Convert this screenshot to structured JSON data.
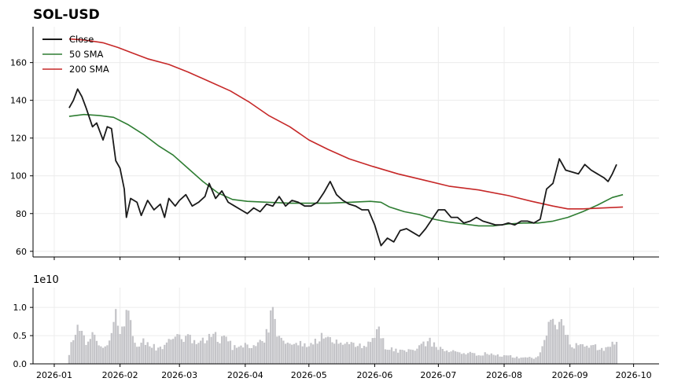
{
  "chart_data": {
    "type": "line",
    "title": "SOL-USD",
    "x_ticks": [
      "2026-01",
      "2026-02",
      "2026-03",
      "2026-04",
      "2026-05",
      "2026-06",
      "2026-07",
      "2026-08",
      "2026-09",
      "2026-10"
    ],
    "price_panel": {
      "ylim": [
        57,
        179
      ],
      "y_ticks": [
        60,
        80,
        100,
        120,
        140,
        160
      ],
      "grid": true,
      "legend_placement": "top-left",
      "series": [
        {
          "name": "Close",
          "color": "#1a1a1a",
          "points": [
            [
              "2026-01-08",
              136
            ],
            [
              "2026-01-10",
              140
            ],
            [
              "2026-01-12",
              146
            ],
            [
              "2026-01-14",
              142
            ],
            [
              "2026-01-16",
              136
            ],
            [
              "2026-01-19",
              126
            ],
            [
              "2026-01-21",
              128
            ],
            [
              "2026-01-24",
              119
            ],
            [
              "2026-01-26",
              126
            ],
            [
              "2026-01-28",
              125
            ],
            [
              "2026-01-30",
              108
            ],
            [
              "2026-02-01",
              104
            ],
            [
              "2026-02-03",
              93
            ],
            [
              "2026-02-04",
              78
            ],
            [
              "2026-02-06",
              88
            ],
            [
              "2026-02-09",
              86
            ],
            [
              "2026-02-11",
              79
            ],
            [
              "2026-02-14",
              87
            ],
            [
              "2026-02-17",
              82
            ],
            [
              "2026-02-20",
              85
            ],
            [
              "2026-02-22",
              78
            ],
            [
              "2026-02-24",
              88
            ],
            [
              "2026-02-27",
              84
            ],
            [
              "2026-03-01",
              87
            ],
            [
              "2026-03-04",
              90
            ],
            [
              "2026-03-07",
              84
            ],
            [
              "2026-03-10",
              86
            ],
            [
              "2026-03-13",
              89
            ],
            [
              "2026-03-15",
              96
            ],
            [
              "2026-03-18",
              88
            ],
            [
              "2026-03-21",
              92
            ],
            [
              "2026-03-24",
              86
            ],
            [
              "2026-03-27",
              84
            ],
            [
              "2026-03-30",
              82
            ],
            [
              "2026-04-02",
              80
            ],
            [
              "2026-04-05",
              83
            ],
            [
              "2026-04-08",
              81
            ],
            [
              "2026-04-11",
              85
            ],
            [
              "2026-04-14",
              84
            ],
            [
              "2026-04-17",
              89
            ],
            [
              "2026-04-20",
              84
            ],
            [
              "2026-04-23",
              87
            ],
            [
              "2026-04-26",
              86
            ],
            [
              "2026-04-29",
              84
            ],
            [
              "2026-05-02",
              84
            ],
            [
              "2026-05-05",
              86
            ],
            [
              "2026-05-08",
              91
            ],
            [
              "2026-05-11",
              97
            ],
            [
              "2026-05-14",
              90
            ],
            [
              "2026-05-17",
              87
            ],
            [
              "2026-05-20",
              85
            ],
            [
              "2026-05-23",
              84
            ],
            [
              "2026-05-26",
              82
            ],
            [
              "2026-05-29",
              82
            ],
            [
              "2026-06-01",
              74
            ],
            [
              "2026-06-04",
              63
            ],
            [
              "2026-06-07",
              67
            ],
            [
              "2026-06-10",
              65
            ],
            [
              "2026-06-13",
              71
            ],
            [
              "2026-06-16",
              72
            ],
            [
              "2026-06-19",
              70
            ],
            [
              "2026-06-22",
              68
            ],
            [
              "2026-06-25",
              72
            ],
            [
              "2026-06-28",
              77
            ],
            [
              "2026-07-01",
              82
            ],
            [
              "2026-07-04",
              82
            ],
            [
              "2026-07-07",
              78
            ],
            [
              "2026-07-10",
              78
            ],
            [
              "2026-07-13",
              75
            ],
            [
              "2026-07-16",
              76
            ],
            [
              "2026-07-19",
              78
            ],
            [
              "2026-07-22",
              76
            ],
            [
              "2026-07-25",
              75
            ],
            [
              "2026-07-28",
              74
            ],
            [
              "2026-07-31",
              74
            ],
            [
              "2026-08-03",
              75
            ],
            [
              "2026-08-06",
              74
            ],
            [
              "2026-08-09",
              76
            ],
            [
              "2026-08-12",
              76
            ],
            [
              "2026-08-15",
              75
            ],
            [
              "2026-08-18",
              77
            ],
            [
              "2026-08-21",
              93
            ],
            [
              "2026-08-24",
              96
            ],
            [
              "2026-08-27",
              109
            ],
            [
              "2026-08-30",
              103
            ],
            [
              "2026-09-02",
              102
            ],
            [
              "2026-09-05",
              101
            ],
            [
              "2026-09-08",
              106
            ],
            [
              "2026-09-11",
              103
            ],
            [
              "2026-09-14",
              101
            ],
            [
              "2026-09-17",
              99
            ],
            [
              "2026-09-19",
              97
            ],
            [
              "2026-09-21",
              101
            ],
            [
              "2026-09-23",
              106
            ]
          ]
        },
        {
          "name": "50 SMA",
          "color": "#2e7d32",
          "points": [
            [
              "2026-01-08",
              131.5
            ],
            [
              "2026-01-15",
              132.5
            ],
            [
              "2026-01-22",
              132
            ],
            [
              "2026-01-29",
              131
            ],
            [
              "2026-02-05",
              127
            ],
            [
              "2026-02-12",
              122
            ],
            [
              "2026-02-19",
              116
            ],
            [
              "2026-02-26",
              111
            ],
            [
              "2026-03-05",
              104
            ],
            [
              "2026-03-12",
              97
            ],
            [
              "2026-03-19",
              91
            ],
            [
              "2026-03-26",
              87.5
            ],
            [
              "2026-04-02",
              86.5
            ],
            [
              "2026-04-12",
              86
            ],
            [
              "2026-04-22",
              85.5
            ],
            [
              "2026-05-01",
              85.5
            ],
            [
              "2026-05-10",
              85.5
            ],
            [
              "2026-05-20",
              86
            ],
            [
              "2026-05-30",
              86.5
            ],
            [
              "2026-06-04",
              86
            ],
            [
              "2026-06-08",
              83.5
            ],
            [
              "2026-06-15",
              81
            ],
            [
              "2026-06-22",
              79.5
            ],
            [
              "2026-06-29",
              77
            ],
            [
              "2026-07-06",
              75.5
            ],
            [
              "2026-07-13",
              74.5
            ],
            [
              "2026-07-20",
              73.5
            ],
            [
              "2026-07-27",
              73.5
            ],
            [
              "2026-08-03",
              74.5
            ],
            [
              "2026-08-10",
              75
            ],
            [
              "2026-08-17",
              75
            ],
            [
              "2026-08-24",
              76
            ],
            [
              "2026-08-31",
              78
            ],
            [
              "2026-09-07",
              81
            ],
            [
              "2026-09-14",
              84.5
            ],
            [
              "2026-09-21",
              88.5
            ],
            [
              "2026-09-26",
              90
            ]
          ]
        },
        {
          "name": "200 SMA",
          "color": "#c62828",
          "points": [
            [
              "2026-01-08",
              172.5
            ],
            [
              "2026-01-15",
              172
            ],
            [
              "2026-01-24",
              170.5
            ],
            [
              "2026-01-31",
              168
            ],
            [
              "2026-02-07",
              165
            ],
            [
              "2026-02-14",
              162
            ],
            [
              "2026-02-24",
              159
            ],
            [
              "2026-03-05",
              155
            ],
            [
              "2026-03-15",
              150
            ],
            [
              "2026-03-25",
              145
            ],
            [
              "2026-04-03",
              139
            ],
            [
              "2026-04-12",
              132
            ],
            [
              "2026-04-22",
              126
            ],
            [
              "2026-05-01",
              119
            ],
            [
              "2026-05-10",
              114
            ],
            [
              "2026-05-20",
              109
            ],
            [
              "2026-05-31",
              105
            ],
            [
              "2026-06-12",
              101
            ],
            [
              "2026-06-25",
              97.5
            ],
            [
              "2026-07-06",
              94.5
            ],
            [
              "2026-07-20",
              92.5
            ],
            [
              "2026-08-03",
              89.5
            ],
            [
              "2026-08-14",
              86.5
            ],
            [
              "2026-08-24",
              84
            ],
            [
              "2026-08-31",
              82.5
            ],
            [
              "2026-09-07",
              82.5
            ],
            [
              "2026-09-17",
              83
            ],
            [
              "2026-09-26",
              83.5
            ]
          ]
        }
      ]
    },
    "volume_panel": {
      "scale_label": "1e10",
      "ylim": [
        0,
        1.35
      ],
      "y_ticks": [
        "0.0",
        "0.5",
        "1.0"
      ],
      "bar_color": "#c4c4c8",
      "bars": [
        [
          "2026-01-08",
          0.2
        ],
        [
          "2026-01-10",
          0.5
        ],
        [
          "2026-01-12",
          0.65
        ],
        [
          "2026-01-14",
          0.6
        ],
        [
          "2026-01-16",
          0.4
        ],
        [
          "2026-01-18",
          0.45
        ],
        [
          "2026-01-20",
          0.55
        ],
        [
          "2026-01-22",
          0.4
        ],
        [
          "2026-01-24",
          0.3
        ],
        [
          "2026-01-26",
          0.42
        ],
        [
          "2026-01-28",
          0.6
        ],
        [
          "2026-01-30",
          0.95
        ],
        [
          "2026-02-01",
          0.65
        ],
        [
          "2026-02-03",
          0.8
        ],
        [
          "2026-02-05",
          1.18
        ],
        [
          "2026-02-07",
          0.45
        ],
        [
          "2026-02-09",
          0.38
        ],
        [
          "2026-02-12",
          0.4
        ],
        [
          "2026-02-15",
          0.35
        ],
        [
          "2026-02-18",
          0.3
        ],
        [
          "2026-02-21",
          0.28
        ],
        [
          "2026-02-24",
          0.4
        ],
        [
          "2026-02-27",
          0.5
        ],
        [
          "2026-03-02",
          0.45
        ],
        [
          "2026-03-05",
          0.55
        ],
        [
          "2026-03-08",
          0.42
        ],
        [
          "2026-03-11",
          0.4
        ],
        [
          "2026-03-14",
          0.5
        ],
        [
          "2026-03-17",
          0.6
        ],
        [
          "2026-03-20",
          0.4
        ],
        [
          "2026-03-23",
          0.55
        ],
        [
          "2026-03-26",
          0.3
        ],
        [
          "2026-03-29",
          0.32
        ],
        [
          "2026-04-01",
          0.38
        ],
        [
          "2026-04-03",
          0.28
        ],
        [
          "2026-04-06",
          0.35
        ],
        [
          "2026-04-09",
          0.4
        ],
        [
          "2026-04-12",
          0.62
        ],
        [
          "2026-04-14",
          1.28
        ],
        [
          "2026-04-16",
          0.55
        ],
        [
          "2026-04-19",
          0.45
        ],
        [
          "2026-04-22",
          0.4
        ],
        [
          "2026-04-25",
          0.38
        ],
        [
          "2026-04-28",
          0.35
        ],
        [
          "2026-05-01",
          0.3
        ],
        [
          "2026-05-04",
          0.4
        ],
        [
          "2026-05-07",
          0.52
        ],
        [
          "2026-05-10",
          0.45
        ],
        [
          "2026-05-13",
          0.4
        ],
        [
          "2026-05-16",
          0.35
        ],
        [
          "2026-05-19",
          0.38
        ],
        [
          "2026-05-22",
          0.36
        ],
        [
          "2026-05-25",
          0.34
        ],
        [
          "2026-05-28",
          0.33
        ],
        [
          "2026-05-31",
          0.42
        ],
        [
          "2026-06-03",
          0.62
        ],
        [
          "2026-06-06",
          0.3
        ],
        [
          "2026-06-09",
          0.28
        ],
        [
          "2026-06-12",
          0.25
        ],
        [
          "2026-06-15",
          0.22
        ],
        [
          "2026-06-18",
          0.28
        ],
        [
          "2026-06-21",
          0.25
        ],
        [
          "2026-06-24",
          0.38
        ],
        [
          "2026-06-27",
          0.42
        ],
        [
          "2026-06-30",
          0.32
        ],
        [
          "2026-07-03",
          0.28
        ],
        [
          "2026-07-06",
          0.22
        ],
        [
          "2026-07-09",
          0.22
        ],
        [
          "2026-07-12",
          0.18
        ],
        [
          "2026-07-15",
          0.2
        ],
        [
          "2026-07-18",
          0.18
        ],
        [
          "2026-07-21",
          0.15
        ],
        [
          "2026-07-24",
          0.2
        ],
        [
          "2026-07-27",
          0.16
        ],
        [
          "2026-07-30",
          0.15
        ],
        [
          "2026-08-02",
          0.17
        ],
        [
          "2026-08-05",
          0.14
        ],
        [
          "2026-08-08",
          0.12
        ],
        [
          "2026-08-11",
          0.13
        ],
        [
          "2026-08-14",
          0.11
        ],
        [
          "2026-08-17",
          0.12
        ],
        [
          "2026-08-20",
          0.45
        ],
        [
          "2026-08-22",
          0.75
        ],
        [
          "2026-08-24",
          0.88
        ],
        [
          "2026-08-26",
          0.6
        ],
        [
          "2026-08-28",
          0.72
        ],
        [
          "2026-08-30",
          0.55
        ],
        [
          "2026-09-02",
          0.3
        ],
        [
          "2026-09-05",
          0.35
        ],
        [
          "2026-09-08",
          0.38
        ],
        [
          "2026-09-11",
          0.32
        ],
        [
          "2026-09-14",
          0.3
        ],
        [
          "2026-09-17",
          0.25
        ],
        [
          "2026-09-20",
          0.38
        ],
        [
          "2026-09-23",
          0.36
        ]
      ]
    }
  },
  "colors": {
    "close": "#1a1a1a",
    "sma50": "#2e7d32",
    "sma200": "#c62828",
    "volume": "#c4c4c8",
    "grid": "#ececec",
    "axis": "#000000"
  }
}
